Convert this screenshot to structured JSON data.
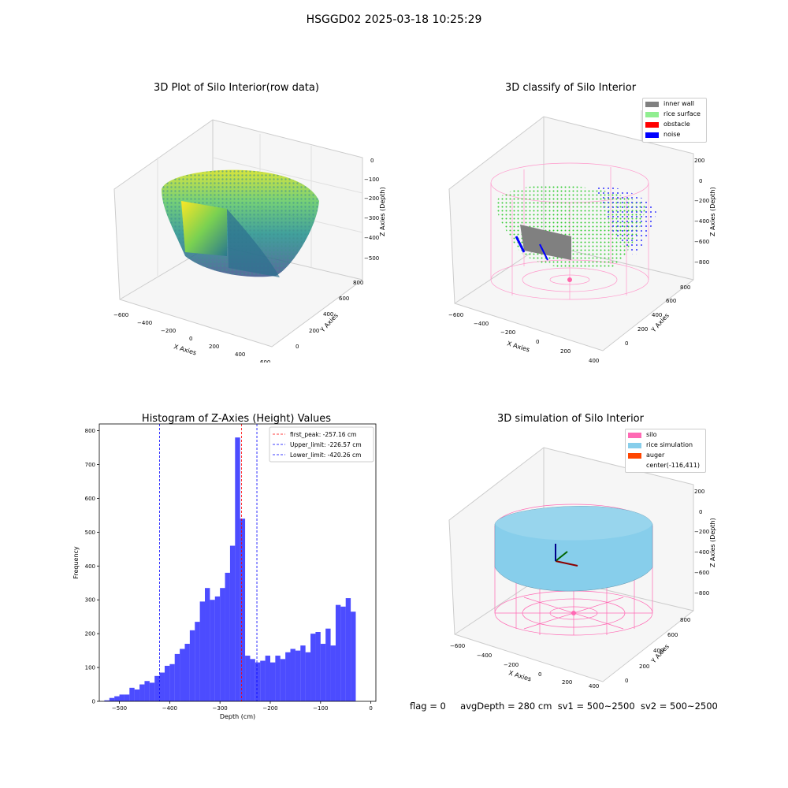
{
  "figure": {
    "suptitle": "HSGGD02 2025-03-18 10:25:29",
    "status_line": {
      "flag": "flag = 0",
      "avg_depth": "avgDepth = 280 cm",
      "sv1": "sv1 = 500~2500",
      "sv2": "sv2 = 500~2500"
    }
  },
  "panel_raw": {
    "title": "3D Plot of Silo Interior(row data)",
    "xlabel": "X Axies",
    "ylabel": "Y Axies",
    "zlabel": "Z Axies (Depth)",
    "xticks": [
      "−600",
      "−400",
      "−200",
      "0",
      "200",
      "400",
      "600"
    ],
    "yticks": [
      "0",
      "200",
      "400",
      "600",
      "800"
    ],
    "zticks": [
      "0",
      "−100",
      "−200",
      "−300",
      "−400",
      "−500"
    ]
  },
  "panel_classify": {
    "title": "3D classify of Silo Interior",
    "xlabel": "X Axies",
    "ylabel": "Y Axies",
    "zlabel": "Z Axies (Depth)",
    "xticks": [
      "−600",
      "−400",
      "−200",
      "0",
      "200",
      "400"
    ],
    "yticks": [
      "0",
      "200",
      "400",
      "600",
      "800"
    ],
    "zticks": [
      "200",
      "0",
      "−200",
      "−400",
      "−600",
      "−800"
    ],
    "legend": [
      {
        "label": "inner wall",
        "color": "#808080"
      },
      {
        "label": "rice surface",
        "color": "#90ee90"
      },
      {
        "label": "obstacle",
        "color": "#ff0000"
      },
      {
        "label": "noise",
        "color": "#0000ff"
      }
    ]
  },
  "panel_sim": {
    "title": "3D simulation of Silo Interior",
    "xlabel": "X Axies",
    "ylabel": "Y Axies",
    "zlabel": "Z Axies (Depth)",
    "xticks": [
      "−600",
      "−400",
      "−200",
      "0",
      "200",
      "400"
    ],
    "yticks": [
      "0",
      "200",
      "400",
      "600",
      "800"
    ],
    "zticks": [
      "200",
      "0",
      "−200",
      "−400",
      "−600",
      "−800"
    ],
    "legend": [
      {
        "label": "silo",
        "color": "#ff69b4"
      },
      {
        "label": "rice simulation",
        "color": "#87ceeb"
      },
      {
        "label": "auger",
        "color": "#ff4500"
      },
      {
        "label": "center(-116,411)",
        "color": ""
      }
    ]
  },
  "chart_data": {
    "type": "bar",
    "title": "Histogram of Z-Axies (Height) Values",
    "xlabel": "Depth (cm)",
    "ylabel": "Frequency",
    "xlim": [
      -540,
      10
    ],
    "ylim": [
      0,
      820
    ],
    "xticks": [
      -500,
      -400,
      -300,
      -200,
      -100,
      0
    ],
    "yticks": [
      0,
      100,
      200,
      300,
      400,
      500,
      600,
      700,
      800
    ],
    "bin_width": 10,
    "bins_start": -530,
    "values": [
      3,
      10,
      15,
      20,
      20,
      40,
      35,
      50,
      60,
      55,
      75,
      85,
      105,
      110,
      140,
      155,
      170,
      210,
      235,
      295,
      335,
      300,
      310,
      335,
      380,
      460,
      780,
      540,
      135,
      125,
      115,
      120,
      135,
      115,
      135,
      125,
      145,
      155,
      150,
      165,
      145,
      200,
      205,
      170,
      215,
      165,
      285,
      280,
      305,
      265
    ],
    "bar_color": "#0000ff",
    "bar_alpha": 0.7,
    "reference_lines": [
      {
        "name": "first_peak",
        "value": -257.16,
        "label": "first_peak: -257.16 cm",
        "color": "#ff0000"
      },
      {
        "name": "upper_limit",
        "value": -226.57,
        "label": "Upper_limit: -226.57 cm",
        "color": "#0000ff"
      },
      {
        "name": "lower_limit",
        "value": -420.26,
        "label": "Lower_limit: -420.26 cm",
        "color": "#0000ff"
      }
    ],
    "legend_position": "top-right"
  }
}
